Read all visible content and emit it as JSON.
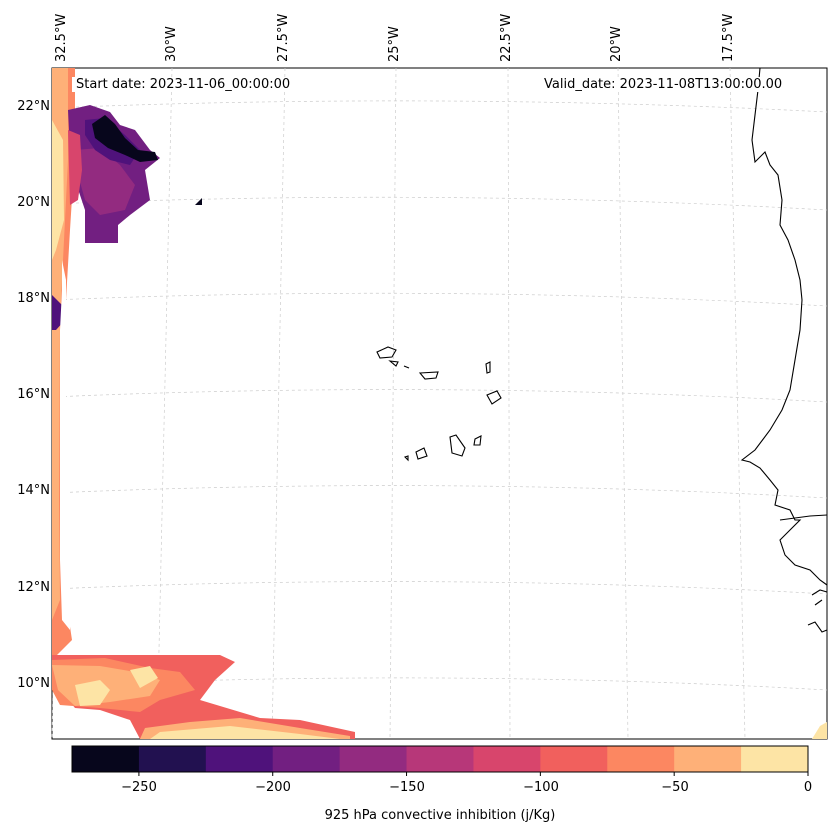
{
  "map": {
    "start_label": "Start date: 2023-11-06_00:00:00",
    "valid_label": "Valid_date: 2023-11-08T13:00:00.00",
    "lat_labels": [
      "22°N",
      "20°N",
      "18°N",
      "16°N",
      "14°N",
      "12°N",
      "10°N"
    ],
    "lon_labels": [
      "32.5°W",
      "30°W",
      "27.5°W",
      "25°W",
      "22.5°W",
      "20°W",
      "17.5°W"
    ],
    "colorbar": {
      "label": "925 hPa convective inhibition (j/Kg)",
      "ticks": [
        "−250",
        "−200",
        "−150",
        "−100",
        "−50",
        "0"
      ],
      "levels": [
        -275,
        -250,
        -225,
        -200,
        -175,
        -150,
        -125,
        -100,
        -75,
        -50,
        -25,
        0
      ],
      "colors": [
        "#07061c",
        "#221150",
        "#4f127b",
        "#721f81",
        "#932b80",
        "#b73779",
        "#d8456c",
        "#f1605d",
        "#fc8761",
        "#feb078",
        "#fde4a5"
      ]
    },
    "field_colors": {
      "darkest": "#07061c",
      "dark": "#221150",
      "purple": "#4f127b",
      "violet": "#721f81",
      "magenta": "#932b80",
      "pink": "#b73779",
      "rose": "#d8456c",
      "coral": "#f1605d",
      "salmon": "#fc8761",
      "peach": "#feb078",
      "cream": "#fde4a5"
    }
  }
}
